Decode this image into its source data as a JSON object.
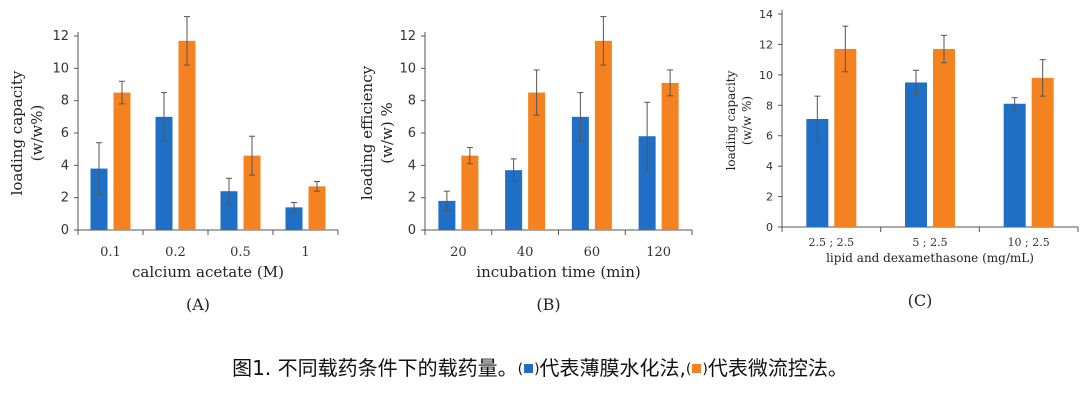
{
  "colors": {
    "blue": "#1f6fc7",
    "orange": "#f58220",
    "axis": "#555555",
    "error": "#555555"
  },
  "chart_data": [
    {
      "type": "bar",
      "panel": "(A)",
      "categories": [
        "0.1",
        "0.2",
        "0.5",
        "1"
      ],
      "xlabel": "calcium acetate (M)",
      "ylabel": [
        "loading capacity",
        "(w/w%)"
      ],
      "ylim": [
        0,
        12
      ],
      "yticks": [
        0,
        2,
        4,
        6,
        8,
        10,
        12
      ],
      "series": [
        {
          "color": "blue",
          "values": [
            3.8,
            7.0,
            2.4,
            1.4
          ],
          "errors": [
            1.6,
            1.5,
            0.8,
            0.3
          ]
        },
        {
          "color": "orange",
          "values": [
            8.5,
            11.7,
            4.6,
            2.7
          ],
          "errors": [
            0.7,
            1.5,
            1.2,
            0.3
          ]
        }
      ]
    },
    {
      "type": "bar",
      "panel": "(B)",
      "categories": [
        "20",
        "40",
        "60",
        "120"
      ],
      "xlabel": "incubation time (min)",
      "ylabel": [
        "loading efficiency",
        "(w/w) %"
      ],
      "ylim": [
        0,
        12
      ],
      "yticks": [
        0,
        2,
        4,
        6,
        8,
        10,
        12
      ],
      "series": [
        {
          "color": "blue",
          "values": [
            1.8,
            3.7,
            7.0,
            5.8
          ],
          "errors": [
            0.6,
            0.7,
            1.5,
            2.1
          ]
        },
        {
          "color": "orange",
          "values": [
            4.6,
            8.5,
            11.7,
            9.1
          ],
          "errors": [
            0.5,
            1.4,
            1.5,
            0.8
          ]
        }
      ]
    },
    {
      "type": "bar",
      "panel": "(C)",
      "categories": [
        "2.5 ; 2.5",
        "5 ; 2.5",
        "10 ; 2.5"
      ],
      "xlabel": "lipid and dexamethasone (mg/mL)",
      "ylabel": [
        "loading capacity",
        "(w/w %)"
      ],
      "ylim": [
        0,
        14
      ],
      "yticks": [
        0,
        2,
        4,
        6,
        8,
        10,
        12,
        14
      ],
      "series": [
        {
          "color": "blue",
          "values": [
            7.1,
            9.5,
            8.1
          ],
          "errors": [
            1.5,
            0.8,
            0.4
          ]
        },
        {
          "color": "orange",
          "values": [
            11.7,
            11.7,
            9.8
          ],
          "errors": [
            1.5,
            0.9,
            1.2
          ]
        }
      ]
    }
  ],
  "caption": {
    "prefix": "图1. 不同载药条件下的载药量。",
    "blue_text": "代表薄膜水化法,",
    "orange_text": "代表微流控法。"
  }
}
